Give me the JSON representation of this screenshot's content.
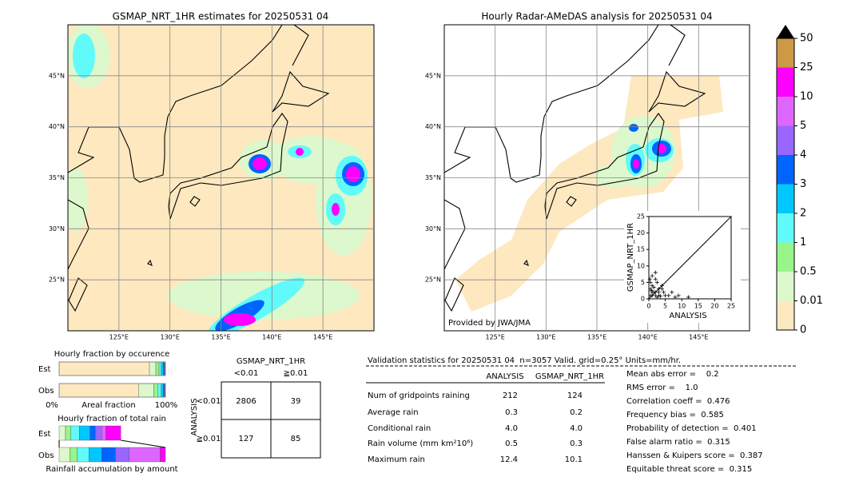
{
  "left_map": {
    "title": "GSMAP_NRT_1HR estimates for 20250531 04",
    "lonlim": [
      120,
      150
    ],
    "latlim": [
      20,
      50
    ],
    "lon_ticks": [
      {
        "value": 125,
        "label": "125°E"
      },
      {
        "value": 130,
        "label": "130°E"
      },
      {
        "value": 135,
        "label": "135°E"
      },
      {
        "value": 140,
        "label": "140°E"
      },
      {
        "value": 145,
        "label": "145°E"
      }
    ],
    "lat_ticks": [
      {
        "value": 25,
        "label": "25°N"
      },
      {
        "value": 30,
        "label": "30°N"
      },
      {
        "value": 35,
        "label": "35°N"
      },
      {
        "value": 40,
        "label": "40°N"
      },
      {
        "value": 45,
        "label": "45°N"
      }
    ]
  },
  "right_map": {
    "title": "Hourly Radar-AMeDAS analysis for 20250531 04",
    "lonlim": [
      120,
      150
    ],
    "latlim": [
      20,
      50
    ],
    "lon_ticks": [
      {
        "value": 125,
        "label": "125°E"
      },
      {
        "value": 130,
        "label": "130°E"
      },
      {
        "value": 135,
        "label": "135°E"
      },
      {
        "value": 140,
        "label": "140°E"
      },
      {
        "value": 145,
        "label": "145°E"
      }
    ],
    "lat_ticks": [
      {
        "value": 25,
        "label": "25°N"
      },
      {
        "value": 30,
        "label": "30°N"
      },
      {
        "value": 35,
        "label": "35°N"
      },
      {
        "value": 40,
        "label": "40°N"
      },
      {
        "value": 45,
        "label": "45°N"
      }
    ],
    "credit": "Provided by JWA/JMA",
    "inset": {
      "xlabel": "ANALYSIS",
      "ylabel": "GSMAP_NRT_1HR",
      "xlim": [
        0,
        25
      ],
      "ylim": [
        0,
        25
      ],
      "ticks": [
        0,
        5,
        10,
        15,
        20,
        25
      ],
      "x": [
        0.5,
        1,
        1.5,
        2,
        2.5,
        3,
        0.5,
        1,
        2,
        3,
        4,
        5,
        1,
        2,
        0.5,
        3,
        4,
        6,
        7,
        8,
        9,
        12,
        2,
        1,
        0.3,
        1.5,
        2.5,
        3.5,
        0.8,
        4.5
      ],
      "y": [
        3,
        4,
        2,
        6,
        5,
        3,
        1,
        1,
        2,
        1,
        4,
        1,
        7,
        8,
        5,
        2,
        3,
        1,
        2,
        0.5,
        1,
        0.5,
        1,
        2,
        6,
        3.5,
        0.5,
        0.8,
        2.5,
        2
      ]
    }
  },
  "colorbar": {
    "bounds": [
      0,
      0.01,
      0.5,
      1,
      2,
      3,
      4,
      5,
      10,
      25,
      50
    ],
    "colors": [
      "#fde8c0",
      "#dcf8cc",
      "#98f58a",
      "#60fafa",
      "#00c8ff",
      "#0064ff",
      "#9966ff",
      "#dd66ff",
      "#ff00ff",
      "#cc9944"
    ],
    "extend_color": "#000000"
  },
  "occurrence": {
    "title": "Hourly fraction by occurence",
    "rows": [
      "Est",
      "Obs"
    ],
    "est": [
      0.85,
      0.06,
      0.03,
      0.02,
      0.02,
      0.01,
      0.005,
      0.005,
      0,
      0
    ],
    "obs": [
      0.75,
      0.14,
      0.04,
      0.03,
      0.02,
      0.01,
      0.005,
      0.005,
      0,
      0
    ],
    "axis_min": "0%",
    "axis_label": "Areal fraction",
    "axis_max": "100%"
  },
  "total_rain": {
    "title": "Hourly fraction of total rain",
    "rows": [
      "Est",
      "Obs"
    ],
    "est": [
      0,
      0.06,
      0.05,
      0.08,
      0.1,
      0.05,
      0.06,
      0.04,
      0.14,
      0
    ],
    "obs": [
      0,
      0.1,
      0.07,
      0.11,
      0.12,
      0.13,
      0.13,
      0.29,
      0.05,
      0
    ],
    "caption": "Rainfall accumulation by amount"
  },
  "contingency": {
    "title": "GSMAP_NRT_1HR",
    "cols": [
      "<0.01",
      "≧0.01"
    ],
    "row_title": "ANALYSIS",
    "rows": [
      "<0.01",
      "≧0.01"
    ],
    "cells": [
      [
        2806,
        39
      ],
      [
        127,
        85
      ]
    ]
  },
  "validation": {
    "header": "Validation statistics for 20250531 04  n=3057 Valid. grid=0.25° Units=mm/hr.",
    "col_a": "ANALYSIS",
    "col_b": "GSMAP_NRT_1HR",
    "rows": [
      {
        "label": "Num of gridpoints raining",
        "a": "212",
        "b": "124"
      },
      {
        "label": "Average rain",
        "a": "0.3",
        "b": "0.2"
      },
      {
        "label": "Conditional rain",
        "a": "4.0",
        "b": "4.0"
      },
      {
        "label": "Rain volume (mm km²10⁶)",
        "a": "0.5",
        "b": "0.3"
      },
      {
        "label": "Maximum rain",
        "a": "12.4",
        "b": "10.1"
      }
    ],
    "scores": [
      "Mean abs error =    0.2",
      "RMS error =    1.0",
      "Correlation coeff =  0.476",
      "Frequency bias =  0.585",
      "Probability of detection =  0.401",
      "False alarm ratio =  0.315",
      "Hanssen & Kuipers score =  0.387",
      "Equitable threat score =  0.315"
    ]
  }
}
